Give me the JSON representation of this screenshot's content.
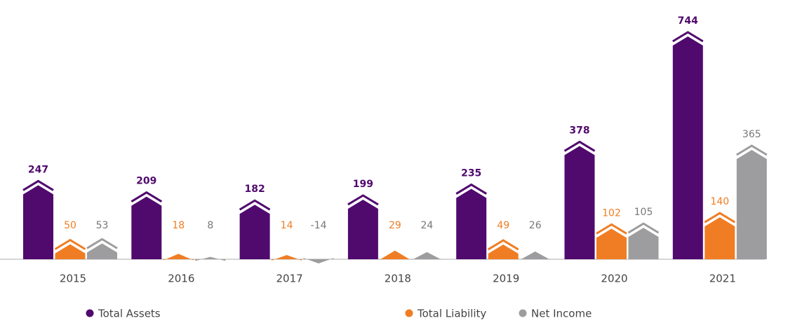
{
  "chart_data": {
    "type": "bar",
    "categories": [
      "2015",
      "2016",
      "2017",
      "2018",
      "2019",
      "2020",
      "2021"
    ],
    "series": [
      {
        "name": "Total Assets",
        "color": "#500a6e",
        "values": [
          247,
          209,
          182,
          199,
          235,
          378,
          744
        ]
      },
      {
        "name": "Total Liability",
        "color": "#f07d23",
        "values": [
          50,
          18,
          14,
          29,
          49,
          102,
          140
        ]
      },
      {
        "name": "Net Income",
        "color": "#9d9d9f",
        "values": [
          53,
          8,
          -14,
          24,
          26,
          105,
          365
        ]
      }
    ]
  }
}
